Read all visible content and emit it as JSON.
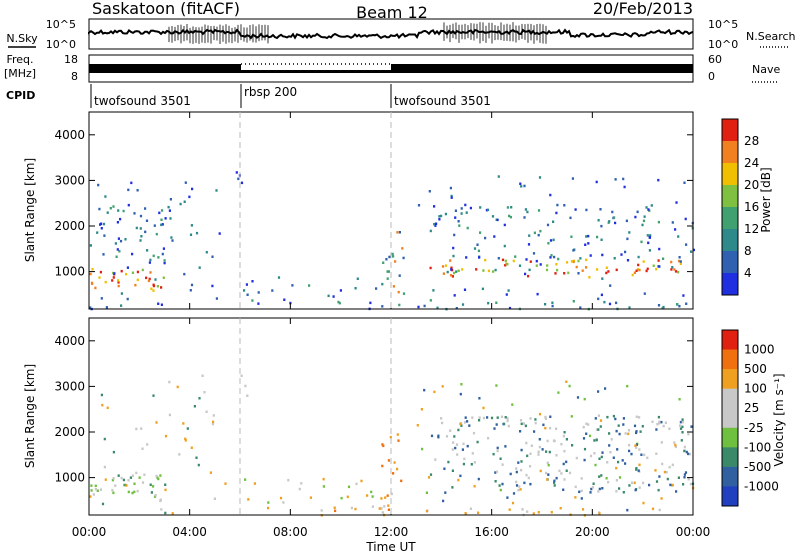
{
  "header": {
    "station": "Saskatoon (fitACF)",
    "beam": "Beam 12",
    "date": "20/Feb/2013"
  },
  "panels": {
    "nsky_label": "N.Sky",
    "nsky_ticks": [
      "10^5",
      "10^0"
    ],
    "nsearch_label": "N.Search",
    "freq_label_1": "Freq.",
    "freq_label_2": "[MHz]",
    "freq_ticks": [
      "18",
      "8"
    ],
    "nave_label": "Nave",
    "nave_ticks": [
      "60",
      "0"
    ],
    "cpid_label": "CPID",
    "cpid_segments": [
      "twofsound 3501",
      "rbsp 200",
      "twofsound 3501"
    ]
  },
  "chart_data": [
    {
      "type": "heatmap",
      "title": "Power",
      "ylabel": "Slant Range [km]",
      "xlabel": "Time UT",
      "xticks": [
        "00:00",
        "04:00",
        "08:00",
        "12:00",
        "16:00",
        "20:00",
        "00:00"
      ],
      "yticks": [
        1000,
        2000,
        3000,
        4000
      ],
      "ylim": [
        180,
        4500
      ],
      "xlim_hours": [
        0,
        24
      ],
      "colorbar_label": "Power [dB]",
      "colorbar_ticks": [
        "28",
        "24",
        "20",
        "16",
        "12",
        "8",
        "4"
      ],
      "colors": [
        "#2030e0",
        "#3060b0",
        "#2e8a8a",
        "#40a070",
        "#80c040",
        "#f0c000",
        "#f08020",
        "#e02010"
      ]
    },
    {
      "type": "heatmap",
      "title": "Velocity",
      "ylabel": "Slant Range [km]",
      "xlabel": "Time UT",
      "xticks": [
        "00:00",
        "04:00",
        "08:00",
        "12:00",
        "16:00",
        "20:00",
        "00:00"
      ],
      "yticks": [
        1000,
        2000,
        3000,
        4000
      ],
      "ylim": [
        180,
        4500
      ],
      "xlim_hours": [
        0,
        24
      ],
      "colorbar_label": "Velocity [m s⁻¹]",
      "colorbar_ticks": [
        "1000",
        "500",
        "100",
        "25",
        "-25",
        "-100",
        "-500",
        "-1000"
      ],
      "colors": [
        "#2040c0",
        "#3060a0",
        "#3a8a6a",
        "#70c040",
        "#c8c8c8",
        "#c8c8c8",
        "#f0a020",
        "#f07010",
        "#e02010"
      ]
    }
  ]
}
